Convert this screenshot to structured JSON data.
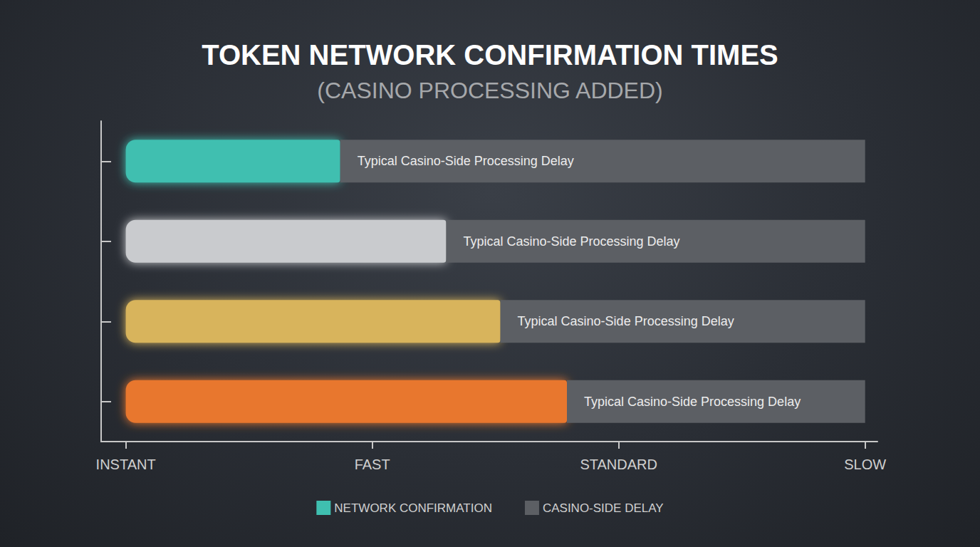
{
  "chart_data": {
    "type": "bar",
    "title": "TOKEN NETWORK CONFIRMATION TIMES",
    "subtitle": "(CASINO PROCESSING ADDED)",
    "orientation": "horizontal",
    "stacked": true,
    "categories": [
      null,
      null,
      null,
      null
    ],
    "series": [
      {
        "name": "NETWORK CONFIRMATION",
        "color": "#3fbfb0",
        "colors": [
          "#3fbfb0",
          "#c9cbce",
          "#d8b45c",
          "#e8772f"
        ],
        "values": [
          0.87,
          1.3,
          1.52,
          1.79
        ]
      },
      {
        "name": "CASINO-SIDE DELAY",
        "color": "#5c5f64",
        "values": [
          2.13,
          1.7,
          1.48,
          1.21
        ],
        "label": "Typical Casino-Side Processing Delay"
      }
    ],
    "xlim": [
      -0.1,
      3.05
    ],
    "xticks": [
      {
        "value": 0,
        "label": "INSTANT"
      },
      {
        "value": 1,
        "label": "FAST"
      },
      {
        "value": 2,
        "label": "STANDARD"
      },
      {
        "value": 3,
        "label": "SLOW"
      }
    ],
    "grid": false,
    "legend": "bottom",
    "data_labels": false,
    "tick_labels": "x"
  }
}
